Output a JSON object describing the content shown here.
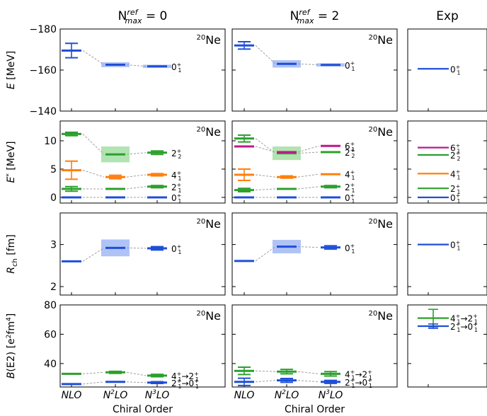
{
  "figure": {
    "columns": [
      {
        "id": "c0",
        "title_main": "N",
        "title_sup": "ref",
        "title_sub": "max",
        "title_tail": " = 0",
        "nucleus_sup": "20",
        "nucleus": "Ne"
      },
      {
        "id": "c2",
        "title_main": "N",
        "title_sup": "ref",
        "title_sub": "max",
        "title_tail": " = 2",
        "nucleus_sup": "20",
        "nucleus": "Ne"
      },
      {
        "id": "exp",
        "title_main": "Exp"
      }
    ],
    "xlabel": "Chiral Order",
    "colors": {
      "blue": "#1f4fd8",
      "green": "#2ca02c",
      "orange": "#ff7f0e",
      "magenta": "#c0168c",
      "band_blue": "#7a9bf0",
      "band_green": "#7fd07f",
      "connector": "#a0a0a0"
    }
  },
  "chart_data": [
    {
      "panel": "energy",
      "type": "level-scheme",
      "ylabel_main": "E",
      "ylabel_unit": "[MeV]",
      "ylim": [
        -180,
        -140
      ],
      "yticks": [
        -180,
        -160,
        -140
      ],
      "ytick_labels": [
        "−180",
        "−160",
        "−140"
      ],
      "inverted": true,
      "categories": [
        "NLO",
        "N2LO",
        "N3LO"
      ],
      "category_labels": [
        {
          "base": "N",
          "sup": "",
          "tail": "LO"
        },
        {
          "base": "N",
          "sup": "2",
          "tail": "LO"
        },
        {
          "base": "N",
          "sup": "3",
          "tail": "LO"
        }
      ],
      "series": [
        {
          "label_main": "0",
          "label_sup": "+",
          "label_sub": "1",
          "color": "blue",
          "c0": [
            {
              "y": -169.5,
              "err": 3.5
            },
            {
              "y": -162.6,
              "band": 1.2
            },
            {
              "y": -161.8,
              "band": 0.8
            }
          ],
          "c2": [
            {
              "y": -172.0,
              "err": 1.8
            },
            {
              "y": -163.0,
              "band": 1.8
            },
            {
              "y": -162.5,
              "band": 0.8
            }
          ],
          "exp": -160.6
        }
      ]
    },
    {
      "panel": "excitation",
      "type": "level-scheme",
      "ylabel_main": "E",
      "ylabel_sup": "*",
      "ylabel_unit": "[MeV]",
      "ylim": [
        -1,
        13.5
      ],
      "yticks": [
        0,
        5,
        10
      ],
      "ytick_labels": [
        "0",
        "5",
        "10"
      ],
      "series": [
        {
          "label_main": "0",
          "label_sup": "+",
          "label_sub": "1",
          "color": "blue",
          "c0": [
            {
              "y": 0
            },
            {
              "y": 0
            },
            {
              "y": 0
            }
          ],
          "c2": [
            {
              "y": 0
            },
            {
              "y": 0
            },
            {
              "y": 0
            }
          ],
          "exp": 0
        },
        {
          "label_main": "2",
          "label_sup": "+",
          "label_sub": "1",
          "color": "green",
          "c0": [
            {
              "y": 1.5,
              "err": 0.4
            },
            {
              "y": 1.5
            },
            {
              "y": 1.9,
              "err": 0.2
            }
          ],
          "c2": [
            {
              "y": 1.3,
              "err": 0.3
            },
            {
              "y": 1.5
            },
            {
              "y": 1.9,
              "err": 0.2
            }
          ],
          "exp": 1.6
        },
        {
          "label_main": "4",
          "label_sup": "+",
          "label_sub": "1",
          "color": "orange",
          "c0": [
            {
              "y": 4.8,
              "err": 1.6
            },
            {
              "y": 3.6,
              "err": 0.3
            },
            {
              "y": 4.0,
              "err": 0.2
            }
          ],
          "c2": [
            {
              "y": 4.0,
              "err": 1.0
            },
            {
              "y": 3.6,
              "err": 0.2
            },
            {
              "y": 4.1
            }
          ],
          "exp": 4.2
        },
        {
          "label_main": "2",
          "label_sup": "+",
          "label_sub": "2",
          "color": "green",
          "c0": [
            {
              "y": 11.2,
              "err": 0.3
            },
            {
              "y": 7.6,
              "band": 1.4
            },
            {
              "y": 7.9,
              "err": 0.3
            }
          ],
          "c2": [
            {
              "y": 10.4,
              "err": 0.6
            },
            {
              "y": 7.8,
              "band": 1.2
            },
            {
              "y": 8.0
            }
          ],
          "exp": 7.5
        },
        {
          "label_main": "6",
          "label_sup": "+",
          "label_sub": "1",
          "color": "magenta",
          "c0": [
            null,
            null,
            null
          ],
          "c2": [
            {
              "y": 9.0
            },
            {
              "y": 8.0
            },
            {
              "y": 9.1
            }
          ],
          "exp": 8.8
        }
      ]
    },
    {
      "panel": "radius",
      "type": "level-scheme",
      "ylabel_main": "R",
      "ylabel_sub": "ch",
      "ylabel_unit": "[fm]",
      "ylim": [
        1.8,
        3.75
      ],
      "yticks": [
        2,
        3
      ],
      "ytick_labels": [
        "2",
        "3"
      ],
      "series": [
        {
          "label_main": "0",
          "label_sup": "+",
          "label_sub": "1",
          "color": "blue",
          "c0": [
            {
              "y": 2.6
            },
            {
              "y": 2.92,
              "band": 0.2
            },
            {
              "y": 2.91,
              "err": 0.04
            }
          ],
          "c2": [
            {
              "y": 2.61
            },
            {
              "y": 2.95,
              "band": 0.16
            },
            {
              "y": 2.93,
              "err": 0.04
            }
          ],
          "exp": 3.0
        }
      ]
    },
    {
      "panel": "be2",
      "type": "level-scheme",
      "ylabel_main": "B",
      "ylabel_paren": "(E2)",
      "ylabel_unit_pre": "[e",
      "ylabel_unit_sup1": "2",
      "ylabel_unit_mid": "fm",
      "ylabel_unit_sup2": "4",
      "ylabel_unit_post": "]",
      "ylim": [
        24,
        80
      ],
      "yticks": [
        40,
        60,
        80
      ],
      "ytick_labels": [
        "40",
        "60",
        "80"
      ],
      "series": [
        {
          "label": {
            "from_main": "4",
            "from_sup": "+",
            "from_sub": "1",
            "arrow": "→",
            "to_main": "2",
            "to_sup": "+",
            "to_sub": "1"
          },
          "color": "green",
          "c0": [
            {
              "y": 33.0
            },
            {
              "y": 34.0,
              "err": 0.7
            },
            {
              "y": 31.8,
              "err": 0.8
            }
          ],
          "c2": [
            {
              "y": 35.0,
              "err": 2.5
            },
            {
              "y": 34.5,
              "err": 1.5
            },
            {
              "y": 33.0,
              "err": 1.5
            }
          ],
          "exp": 71.0,
          "exp_err": 6.0
        },
        {
          "label": {
            "from_main": "2",
            "from_sup": "+",
            "from_sub": "1",
            "arrow": "→",
            "to_main": "0",
            "to_sup": "+",
            "to_sub": "1"
          },
          "color": "blue",
          "c0": [
            {
              "y": 26.0
            },
            {
              "y": 27.5
            },
            {
              "y": 27.0,
              "err": 0.6
            }
          ],
          "c2": [
            {
              "y": 27.5,
              "err": 2.5
            },
            {
              "y": 28.5,
              "err": 1.3
            },
            {
              "y": 27.5,
              "err": 1.0
            }
          ],
          "exp": 65.5,
          "exp_err": 1.5
        }
      ]
    }
  ]
}
